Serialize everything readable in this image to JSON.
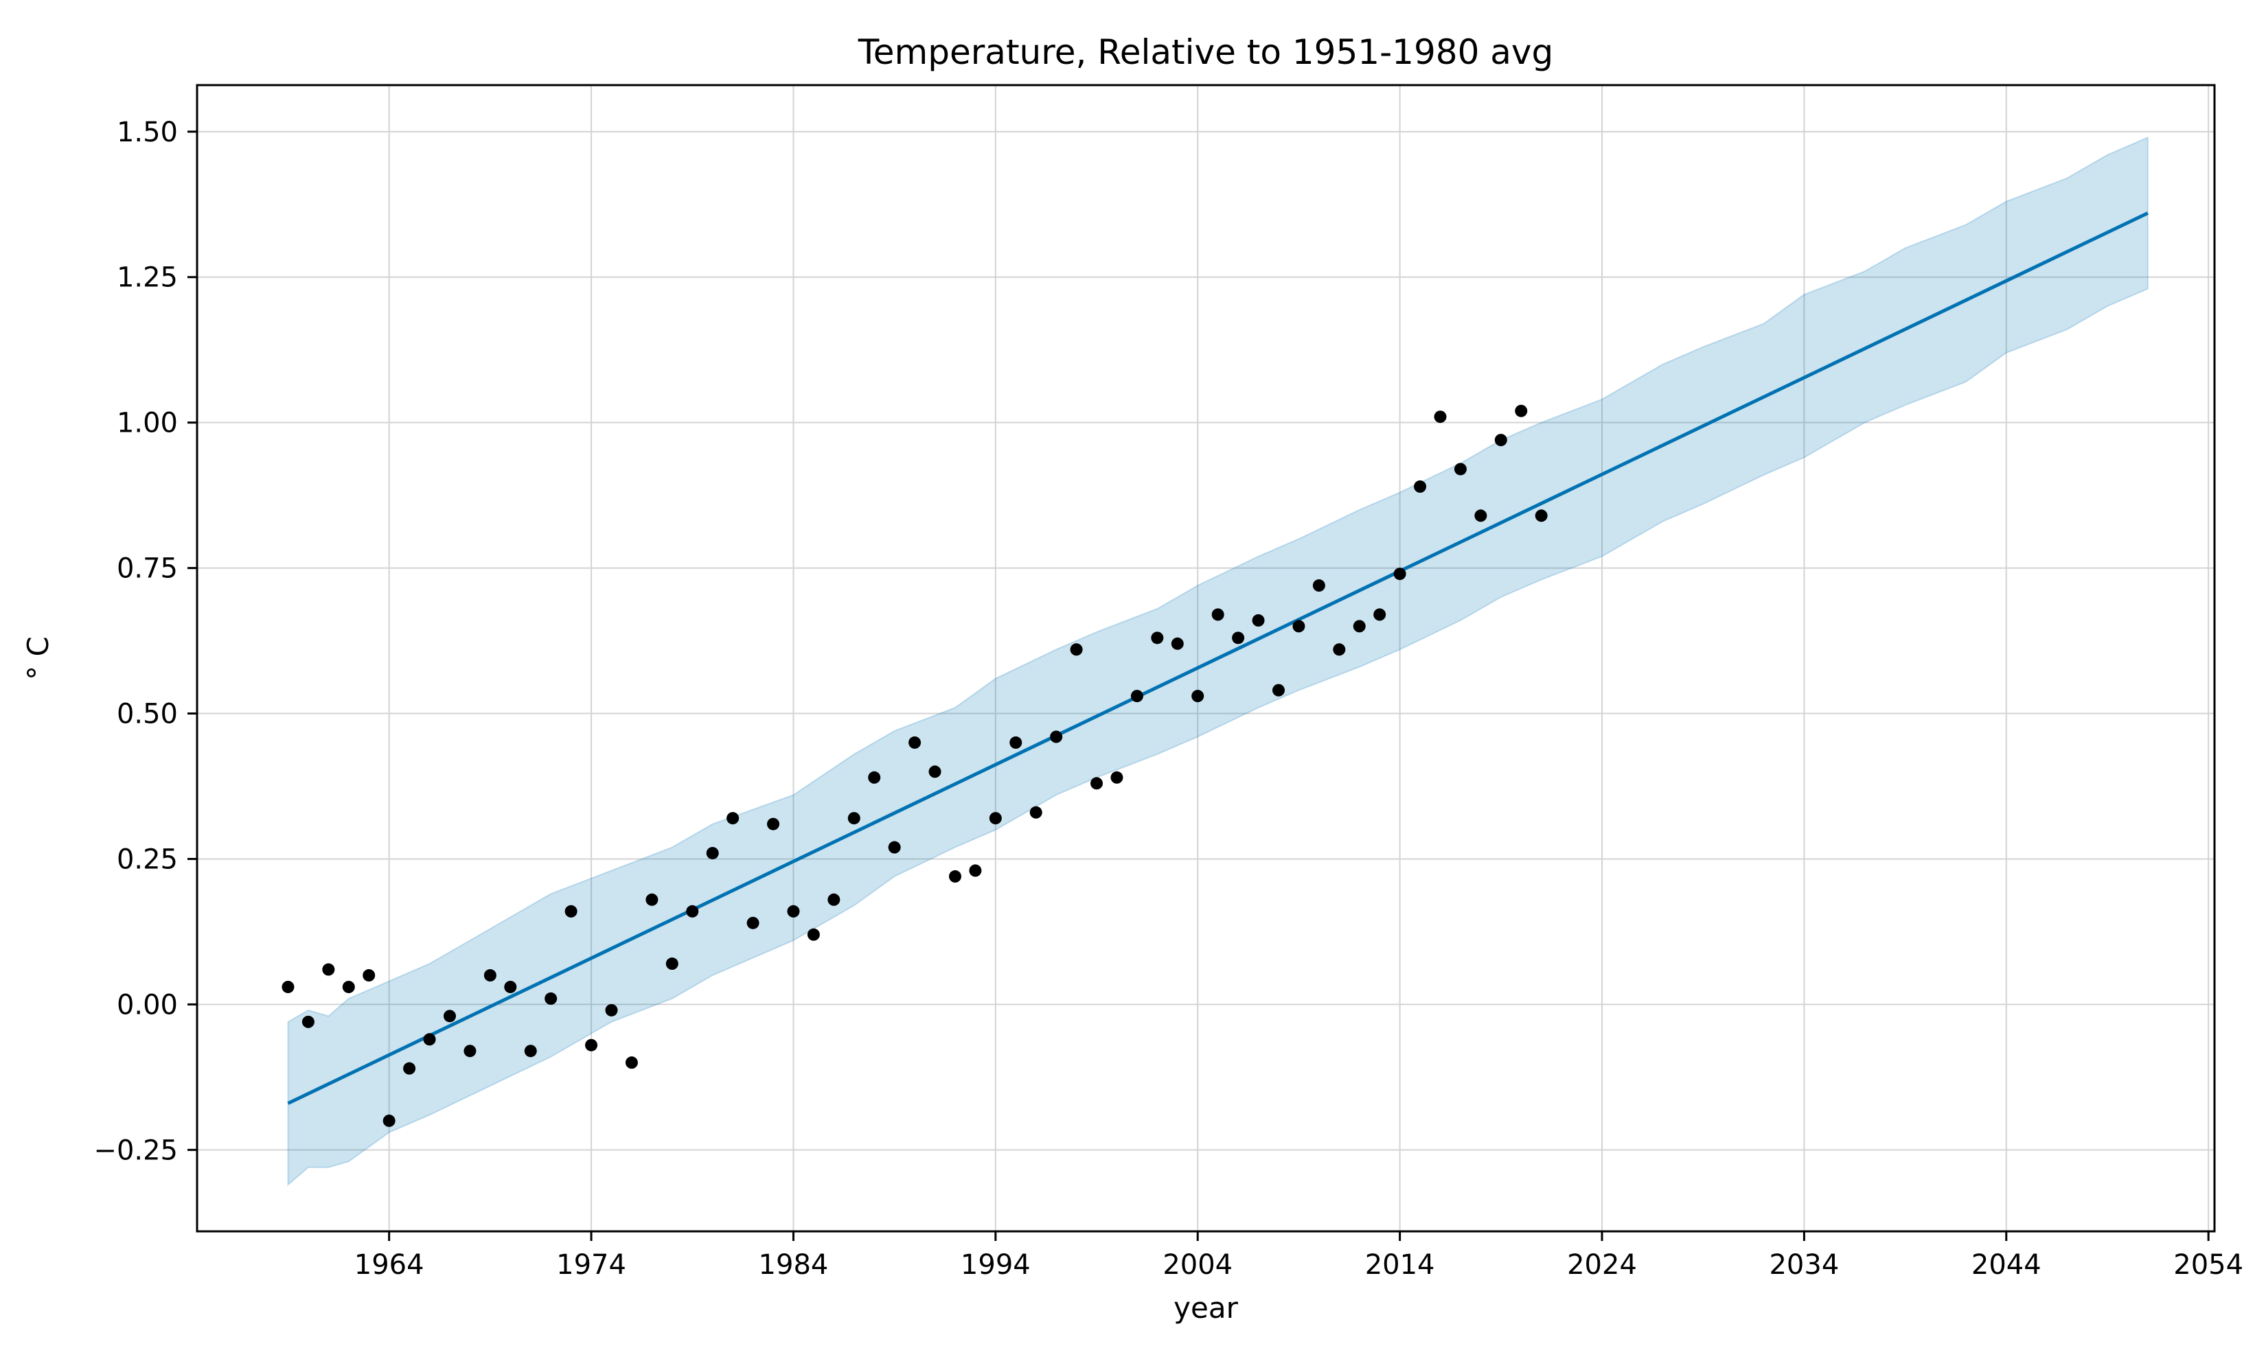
{
  "chart_data": {
    "type": "line",
    "title": "Temperature, Relative to 1951-1980 avg",
    "xlabel": "year",
    "ylabel": "° C",
    "xlim": [
      1954.5,
      2054.3
    ],
    "ylim": [
      -0.39,
      1.58
    ],
    "xticks": [
      1964,
      1974,
      1984,
      1994,
      2004,
      2014,
      2024,
      2034,
      2044,
      2054
    ],
    "yticks": [
      -0.25,
      0.0,
      0.25,
      0.5,
      0.75,
      1.0,
      1.25,
      1.5
    ],
    "ytick_labels": [
      "−0.25",
      "0.00",
      "0.25",
      "0.50",
      "0.75",
      "1.00",
      "1.25",
      "1.50"
    ],
    "grid": true,
    "colors": {
      "forecast": "#0072B2",
      "band": "#0072B2",
      "observed": "#000000",
      "grid": "#d3d3d3"
    },
    "series": [
      {
        "kind": "forecast",
        "x": [
          1959,
          2051
        ],
        "y": [
          -0.17,
          1.36
        ]
      },
      {
        "kind": "uncertainty_band",
        "x": [
          1959,
          1960,
          1961,
          1962,
          1964,
          1966,
          1969,
          1972,
          1975,
          1978,
          1980,
          1984,
          1987,
          1989,
          1992,
          1994,
          1997,
          1999,
          2002,
          2004,
          2007,
          2009,
          2012,
          2014,
          2017,
          2019,
          2021,
          2024,
          2027,
          2029,
          2032,
          2034,
          2037,
          2039,
          2042,
          2044,
          2047,
          2049,
          2051
        ],
        "lower": [
          -0.31,
          -0.28,
          -0.28,
          -0.27,
          -0.22,
          -0.19,
          -0.14,
          -0.09,
          -0.03,
          0.01,
          0.05,
          0.11,
          0.17,
          0.22,
          0.27,
          0.3,
          0.36,
          0.39,
          0.43,
          0.46,
          0.51,
          0.54,
          0.58,
          0.61,
          0.66,
          0.7,
          0.73,
          0.77,
          0.83,
          0.86,
          0.91,
          0.94,
          1.0,
          1.03,
          1.07,
          1.12,
          1.16,
          1.2,
          1.23
        ],
        "upper": [
          -0.03,
          -0.01,
          -0.02,
          0.01,
          0.04,
          0.07,
          0.13,
          0.19,
          0.23,
          0.27,
          0.31,
          0.36,
          0.43,
          0.47,
          0.51,
          0.56,
          0.61,
          0.64,
          0.68,
          0.72,
          0.77,
          0.8,
          0.85,
          0.88,
          0.93,
          0.97,
          1.0,
          1.04,
          1.1,
          1.13,
          1.17,
          1.22,
          1.26,
          1.3,
          1.34,
          1.38,
          1.42,
          1.46,
          1.49
        ]
      },
      {
        "kind": "observed",
        "x": [
          1959,
          1960,
          1961,
          1962,
          1963,
          1964,
          1965,
          1966,
          1967,
          1968,
          1969,
          1970,
          1971,
          1972,
          1973,
          1974,
          1975,
          1976,
          1977,
          1978,
          1979,
          1980,
          1981,
          1982,
          1983,
          1984,
          1985,
          1986,
          1987,
          1988,
          1989,
          1990,
          1991,
          1992,
          1993,
          1994,
          1995,
          1996,
          1997,
          1998,
          1999,
          2000,
          2001,
          2002,
          2003,
          2004,
          2005,
          2006,
          2007,
          2008,
          2009,
          2010,
          2011,
          2012,
          2013,
          2014,
          2015,
          2016,
          2017,
          2018,
          2019,
          2020,
          2021
        ],
        "y": [
          0.03,
          -0.03,
          0.06,
          0.03,
          0.05,
          -0.2,
          -0.11,
          -0.06,
          -0.02,
          -0.08,
          0.05,
          0.03,
          -0.08,
          0.01,
          0.16,
          -0.07,
          -0.01,
          -0.1,
          0.18,
          0.07,
          0.16,
          0.26,
          0.32,
          0.14,
          0.31,
          0.16,
          0.12,
          0.18,
          0.32,
          0.39,
          0.27,
          0.45,
          0.4,
          0.22,
          0.23,
          0.32,
          0.45,
          0.33,
          0.46,
          0.61,
          0.38,
          0.39,
          0.53,
          0.63,
          0.62,
          0.53,
          0.67,
          0.63,
          0.66,
          0.54,
          0.65,
          0.72,
          0.61,
          0.65,
          0.67,
          0.74,
          0.89,
          1.01,
          0.92,
          0.84,
          0.97,
          1.02,
          0.84
        ]
      }
    ]
  }
}
